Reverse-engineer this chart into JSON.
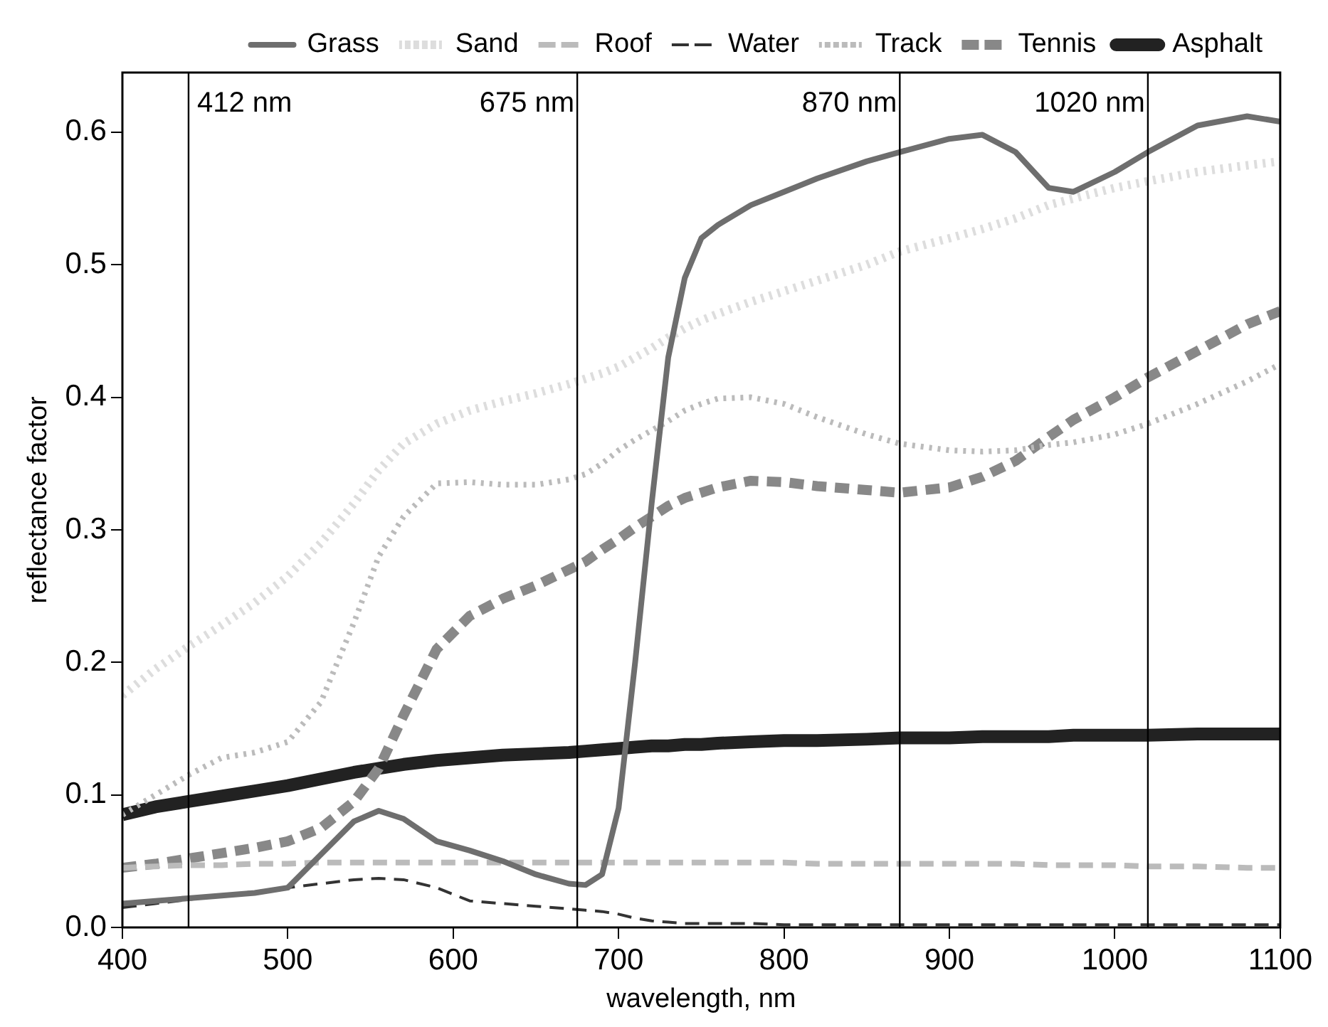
{
  "chart_data": {
    "type": "line",
    "xlabel": "wavelength, nm",
    "ylabel": "reflectance factor",
    "x": [
      400,
      420,
      440,
      460,
      480,
      500,
      520,
      540,
      555,
      570,
      590,
      610,
      630,
      650,
      670,
      680,
      690,
      700,
      710,
      720,
      730,
      740,
      750,
      760,
      780,
      800,
      820,
      850,
      870,
      900,
      920,
      940,
      960,
      975,
      1000,
      1020,
      1050,
      1080,
      1100
    ],
    "series": [
      {
        "name": "Grass",
        "color": "#6e6e6e",
        "line_style": "solid",
        "values": [
          0.018,
          0.02,
          0.022,
          0.024,
          0.026,
          0.03,
          0.055,
          0.08,
          0.088,
          0.082,
          0.065,
          0.058,
          0.05,
          0.04,
          0.033,
          0.032,
          0.04,
          0.09,
          0.2,
          0.32,
          0.43,
          0.49,
          0.52,
          0.53,
          0.545,
          0.555,
          0.565,
          0.578,
          0.585,
          0.595,
          0.598,
          0.585,
          0.558,
          0.555,
          0.57,
          0.585,
          0.605,
          0.612,
          0.608
        ]
      },
      {
        "name": "Sand",
        "color": "#dddddd",
        "line_style": "dotted",
        "values": [
          0.175,
          0.195,
          0.212,
          0.228,
          0.245,
          0.265,
          0.29,
          0.32,
          0.345,
          0.365,
          0.38,
          0.39,
          0.397,
          0.403,
          0.41,
          0.414,
          0.418,
          0.423,
          0.43,
          0.437,
          0.445,
          0.452,
          0.458,
          0.463,
          0.472,
          0.48,
          0.488,
          0.5,
          0.51,
          0.52,
          0.527,
          0.535,
          0.545,
          0.55,
          0.558,
          0.563,
          0.57,
          0.575,
          0.578
        ]
      },
      {
        "name": "Roof",
        "color": "#bbbbbb",
        "line_style": "dashed",
        "values": [
          0.045,
          0.046,
          0.047,
          0.047,
          0.048,
          0.048,
          0.049,
          0.049,
          0.049,
          0.049,
          0.049,
          0.049,
          0.049,
          0.049,
          0.049,
          0.049,
          0.049,
          0.049,
          0.049,
          0.049,
          0.049,
          0.049,
          0.049,
          0.049,
          0.049,
          0.049,
          0.048,
          0.048,
          0.048,
          0.048,
          0.048,
          0.048,
          0.047,
          0.047,
          0.047,
          0.046,
          0.046,
          0.045,
          0.045
        ]
      },
      {
        "name": "Water",
        "color": "#333333",
        "line_style": "dashed",
        "values": [
          0.015,
          0.018,
          0.021,
          0.024,
          0.027,
          0.03,
          0.033,
          0.036,
          0.037,
          0.036,
          0.03,
          0.02,
          0.018,
          0.016,
          0.014,
          0.013,
          0.012,
          0.01,
          0.007,
          0.005,
          0.004,
          0.003,
          0.003,
          0.003,
          0.003,
          0.002,
          0.002,
          0.002,
          0.002,
          0.002,
          0.002,
          0.002,
          0.002,
          0.002,
          0.002,
          0.002,
          0.002,
          0.002,
          0.002
        ]
      },
      {
        "name": "Track",
        "color": "#bbbbbb",
        "line_style": "dotted",
        "values": [
          0.085,
          0.1,
          0.115,
          0.128,
          0.132,
          0.14,
          0.17,
          0.23,
          0.28,
          0.31,
          0.335,
          0.336,
          0.334,
          0.334,
          0.338,
          0.342,
          0.35,
          0.36,
          0.368,
          0.375,
          0.382,
          0.39,
          0.395,
          0.399,
          0.4,
          0.395,
          0.385,
          0.372,
          0.365,
          0.36,
          0.359,
          0.36,
          0.364,
          0.366,
          0.372,
          0.38,
          0.395,
          0.412,
          0.425
        ]
      },
      {
        "name": "Tennis",
        "color": "#888888",
        "line_style": "dashed",
        "values": [
          0.045,
          0.048,
          0.052,
          0.056,
          0.06,
          0.065,
          0.075,
          0.095,
          0.12,
          0.16,
          0.21,
          0.235,
          0.248,
          0.258,
          0.27,
          0.276,
          0.285,
          0.293,
          0.302,
          0.31,
          0.318,
          0.324,
          0.328,
          0.332,
          0.337,
          0.336,
          0.333,
          0.33,
          0.328,
          0.332,
          0.34,
          0.352,
          0.37,
          0.383,
          0.4,
          0.415,
          0.435,
          0.455,
          0.465
        ]
      },
      {
        "name": "Asphalt",
        "color": "#222222",
        "line_style": "solid",
        "values": [
          0.085,
          0.091,
          0.095,
          0.099,
          0.103,
          0.107,
          0.112,
          0.117,
          0.12,
          0.123,
          0.126,
          0.128,
          0.13,
          0.131,
          0.132,
          0.133,
          0.134,
          0.135,
          0.136,
          0.137,
          0.137,
          0.138,
          0.138,
          0.139,
          0.14,
          0.141,
          0.141,
          0.142,
          0.143,
          0.143,
          0.144,
          0.144,
          0.144,
          0.145,
          0.145,
          0.145,
          0.146,
          0.146,
          0.146
        ]
      }
    ],
    "xlim": [
      400,
      1100
    ],
    "xticks": [
      400,
      500,
      600,
      700,
      800,
      900,
      1000,
      1100
    ],
    "ylim": [
      0,
      0.645
    ],
    "yticks": [
      {
        "value": 0,
        "label": "0.0"
      },
      0.1,
      0.2,
      0.3,
      0.4,
      0.5,
      0.6
    ],
    "ref_lines": [
      {
        "axis": "x",
        "value": 440,
        "label": "412 nm",
        "color": "#000000"
      },
      {
        "axis": "x",
        "value": 675,
        "label": "675 nm",
        "color": "#000000"
      },
      {
        "axis": "x",
        "value": 870,
        "label": "870 nm",
        "color": "#000000"
      },
      {
        "axis": "x",
        "value": 1020,
        "label": "1020 nm",
        "color": "#000000"
      }
    ],
    "grid": false,
    "legend": "top",
    "marker": "none"
  }
}
